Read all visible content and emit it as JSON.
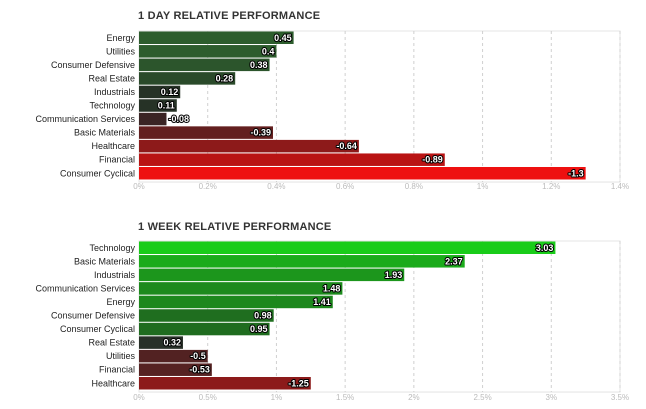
{
  "chart_data": [
    {
      "type": "bar",
      "orientation": "horizontal",
      "title": "1 DAY RELATIVE PERFORMANCE",
      "categories": [
        "Energy",
        "Utilities",
        "Consumer Defensive",
        "Real Estate",
        "Industrials",
        "Technology",
        "Communication Services",
        "Basic Materials",
        "Healthcare",
        "Financial",
        "Consumer Cyclical"
      ],
      "values": [
        0.45,
        0.4,
        0.38,
        0.28,
        0.12,
        0.11,
        -0.08,
        -0.39,
        -0.64,
        -0.89,
        -1.3
      ],
      "value_labels": [
        "0.45",
        "0.4",
        "0.38",
        "0.28",
        "0.12",
        "0.11",
        "-0.08",
        "-0.39",
        "-0.64",
        "-0.89",
        "-1.3"
      ],
      "bar_colors": [
        "#2d5d2d",
        "#2d5d2d",
        "#2c552c",
        "#2a4a2a",
        "#263226",
        "#263226",
        "#3a2424",
        "#631f1f",
        "#8d1a1a",
        "#b91414",
        "#ee1010"
      ],
      "xlim": [
        0,
        1.4
      ],
      "x_ticks": [
        "0%",
        "0.2%",
        "0.4%",
        "0.6%",
        "0.8%",
        "1%",
        "1.2%",
        "1.4%"
      ],
      "x_tick_values": [
        0,
        0.2,
        0.4,
        0.6,
        0.8,
        1.0,
        1.2,
        1.4
      ],
      "bar_length": "absolute value",
      "grid": true
    },
    {
      "type": "bar",
      "orientation": "horizontal",
      "title": "1 WEEK RELATIVE PERFORMANCE",
      "categories": [
        "Technology",
        "Basic Materials",
        "Industrials",
        "Communication Services",
        "Energy",
        "Consumer Defensive",
        "Consumer Cyclical",
        "Real Estate",
        "Utilities",
        "Financial",
        "Healthcare"
      ],
      "values": [
        3.03,
        2.37,
        1.93,
        1.48,
        1.41,
        0.98,
        0.95,
        0.32,
        -0.5,
        -0.53,
        -1.25
      ],
      "value_labels": [
        "3.03",
        "2.37",
        "1.93",
        "1.48",
        "1.41",
        "0.98",
        "0.95",
        "0.32",
        "-0.5",
        "-0.53",
        "-1.25"
      ],
      "bar_colors": [
        "#19cc19",
        "#1bab1b",
        "#1c961c",
        "#1d8a1d",
        "#1d881d",
        "#1f6e1f",
        "#1f6c1f",
        "#283028",
        "#522222",
        "#552222",
        "#8c1a1a"
      ],
      "xlim": [
        0,
        3.5
      ],
      "x_ticks": [
        "0%",
        "0.5%",
        "1%",
        "1.5%",
        "2%",
        "2.5%",
        "3%",
        "3.5%"
      ],
      "x_tick_values": [
        0,
        0.5,
        1.0,
        1.5,
        2.0,
        2.5,
        3.0,
        3.5
      ],
      "bar_length": "absolute value",
      "grid": true
    }
  ]
}
